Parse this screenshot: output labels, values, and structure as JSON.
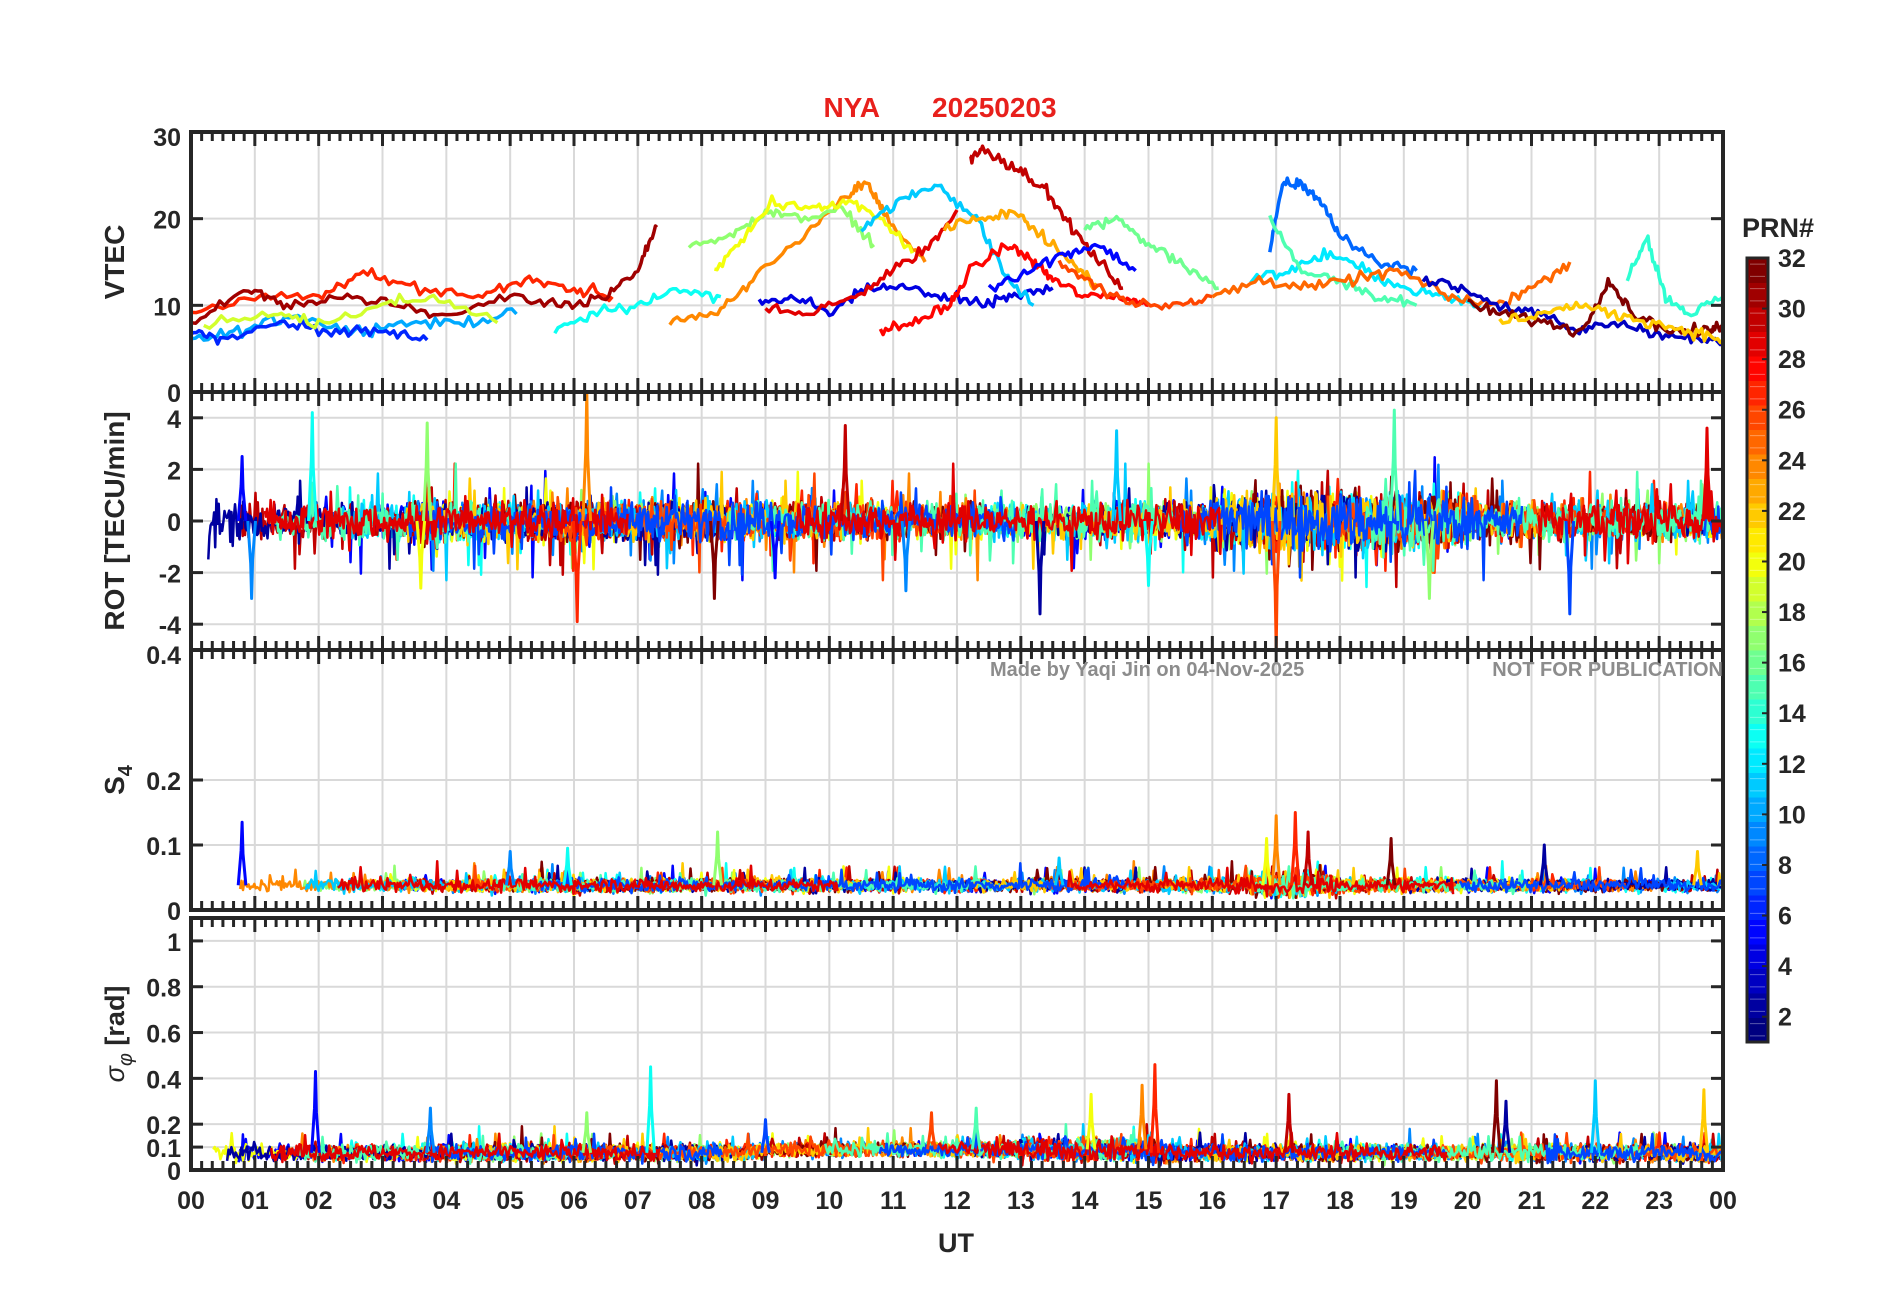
{
  "title": {
    "station": "NYA",
    "date": "20250203",
    "color": "#e8201c"
  },
  "watermark": {
    "author": "Made by Yaqi Jin on 04-Nov-2025",
    "notice": "NOT FOR PUBLICATION"
  },
  "x_axis": {
    "label": "UT",
    "range_hours": [
      0,
      24
    ],
    "tick_labels": [
      "00",
      "01",
      "02",
      "03",
      "04",
      "05",
      "06",
      "07",
      "08",
      "09",
      "10",
      "11",
      "12",
      "13",
      "14",
      "15",
      "16",
      "17",
      "18",
      "19",
      "20",
      "21",
      "22",
      "23",
      "00"
    ]
  },
  "colorbar": {
    "title": "PRN#",
    "range": [
      1,
      32
    ],
    "tick_labels": [
      "2",
      "4",
      "6",
      "8",
      "10",
      "12",
      "14",
      "16",
      "18",
      "20",
      "22",
      "24",
      "26",
      "28",
      "30",
      "32"
    ],
    "tick_values": [
      2,
      4,
      6,
      8,
      10,
      12,
      14,
      16,
      18,
      20,
      22,
      24,
      26,
      28,
      30,
      32
    ],
    "colormap": "jet"
  },
  "chart_data": [
    {
      "type": "line",
      "panel": "vtec",
      "ylabel": "VTEC",
      "ylim": [
        0,
        30
      ],
      "ytick_values": [
        0,
        10,
        20,
        30
      ],
      "ytick_labels": [
        "0",
        "10",
        "20",
        "30"
      ],
      "grid": true,
      "series": [
        {
          "name": "PRN 27",
          "x": [
            0.0,
            1.0,
            2.0,
            2.7,
            3.5,
            4.5,
            5.3,
            6.0,
            6.6
          ],
          "y": [
            9,
            11,
            11,
            14,
            12,
            11,
            13,
            12,
            11
          ]
        },
        {
          "name": "PRN 31",
          "x": [
            0.0,
            0.9,
            1.5,
            2.3,
            3.2,
            4.0,
            5.0,
            5.8,
            6.5,
            7.0,
            7.3
          ],
          "y": [
            8,
            12,
            10,
            11,
            10,
            9,
            11,
            10,
            11,
            14,
            19
          ]
        },
        {
          "name": "PRN 10",
          "x": [
            0.0,
            0.8,
            1.6,
            2.5,
            3.3,
            4.2,
            5.1
          ],
          "y": [
            6,
            7,
            9,
            7,
            8,
            8,
            9
          ]
        },
        {
          "name": "PRN 6",
          "x": [
            0.0,
            0.5,
            1.4,
            2.2,
            3.0,
            3.7
          ],
          "y": [
            7,
            6,
            8,
            7,
            7,
            6
          ]
        },
        {
          "name": "PRN 19",
          "x": [
            0.2,
            1.3,
            2.0,
            3.0,
            3.8,
            4.8
          ],
          "y": [
            8,
            9,
            8,
            10,
            11,
            8
          ]
        },
        {
          "name": "PRN 13",
          "x": [
            5.7,
            6.3,
            7.0,
            7.6,
            8.3
          ],
          "y": [
            7,
            9,
            10,
            12,
            11
          ]
        },
        {
          "name": "PRN 24",
          "x": [
            7.5,
            8.2,
            8.8,
            9.6,
            10.3,
            10.6,
            10.9,
            11.5
          ],
          "y": [
            8,
            9,
            13,
            18,
            23,
            24,
            20,
            15
          ]
        },
        {
          "name": "PRN 17",
          "x": [
            7.8,
            8.5,
            9.0,
            9.5,
            10.2,
            10.7
          ],
          "y": [
            17,
            18,
            21,
            20,
            21,
            17
          ]
        },
        {
          "name": "PRN 20",
          "x": [
            8.2,
            8.7,
            9.1,
            9.8,
            10.3,
            10.8,
            11.3
          ],
          "y": [
            14,
            18,
            22,
            21,
            22,
            20,
            16
          ]
        },
        {
          "name": "PRN 4",
          "x": [
            8.9,
            9.5,
            10.0,
            10.6,
            11.2,
            11.8,
            12.4,
            12.9,
            13.5
          ],
          "y": [
            10,
            11,
            9,
            12,
            12,
            11,
            10,
            11,
            12
          ]
        },
        {
          "name": "PRN 29",
          "x": [
            9.0,
            9.7,
            10.4,
            11.0,
            11.6,
            12.0
          ],
          "y": [
            10,
            9,
            11,
            14,
            17,
            21
          ]
        },
        {
          "name": "PRN 11",
          "x": [
            10.5,
            11.1,
            11.7,
            12.3,
            12.8,
            13.2
          ],
          "y": [
            19,
            22,
            24,
            20,
            13,
            10
          ]
        },
        {
          "name": "PRN 28",
          "x": [
            10.8,
            11.3,
            11.9,
            12.2,
            12.8,
            13.2,
            13.5,
            14.0,
            14.6,
            15.0
          ],
          "y": [
            7,
            8,
            10,
            14,
            17,
            15,
            13,
            11,
            11,
            10
          ]
        },
        {
          "name": "PRN 30",
          "x": [
            12.2,
            12.4,
            12.9,
            13.3,
            13.7,
            14.1,
            14.6
          ],
          "y": [
            27,
            28,
            26,
            24,
            20,
            16,
            12
          ]
        },
        {
          "name": "PRN 23",
          "x": [
            11.8,
            12.4,
            12.9,
            13.3,
            13.8,
            14.2
          ],
          "y": [
            19,
            20,
            21,
            18,
            15,
            12
          ]
        },
        {
          "name": "PRN 5",
          "x": [
            12.5,
            13.1,
            13.7,
            14.2,
            14.8
          ],
          "y": [
            12,
            14,
            16,
            17,
            14
          ]
        },
        {
          "name": "PRN 26",
          "x": [
            13.6,
            14.2,
            14.8,
            15.5,
            16.0
          ],
          "y": [
            15,
            12,
            10,
            10,
            11
          ]
        },
        {
          "name": "PRN 16",
          "x": [
            14.0,
            14.5,
            15.0,
            15.5,
            16.1
          ],
          "y": [
            19,
            20,
            17,
            15,
            12
          ]
        },
        {
          "name": "PRN 8",
          "x": [
            16.9,
            17.1,
            17.4,
            17.7,
            18.0,
            18.6,
            19.2
          ],
          "y": [
            16,
            24,
            24,
            22,
            18,
            15,
            14
          ]
        },
        {
          "name": "PRN 12",
          "x": [
            16.6,
            17.2,
            17.8,
            18.4,
            19.0,
            19.6,
            20.2
          ],
          "y": [
            13,
            14,
            16,
            14,
            12,
            11,
            10
          ]
        },
        {
          "name": "PRN 15",
          "x": [
            16.9,
            17.4,
            18.0,
            18.6,
            19.2
          ],
          "y": [
            20,
            14,
            13,
            11,
            10
          ]
        },
        {
          "name": "PRN 25",
          "x": [
            16.0,
            16.8,
            17.5,
            18.2,
            18.9,
            19.7,
            20.4,
            21.0,
            21.6
          ],
          "y": [
            11,
            13,
            12,
            13,
            14,
            11,
            10,
            12,
            15
          ]
        },
        {
          "name": "PRN 3",
          "x": [
            19.3,
            19.9,
            20.5,
            21.1,
            21.7,
            22.3,
            22.9,
            23.5,
            24.0
          ],
          "y": [
            13,
            12,
            10,
            9,
            7,
            8,
            7,
            6,
            6
          ]
        },
        {
          "name": "PRN 32",
          "x": [
            20.0,
            20.6,
            21.2,
            21.8,
            22.2,
            22.6,
            23.2,
            23.8,
            24.0
          ],
          "y": [
            10,
            9,
            8,
            7,
            13,
            9,
            7,
            7,
            8
          ]
        },
        {
          "name": "PRN 14",
          "x": [
            22.5,
            22.8,
            23.1,
            23.5,
            24.0
          ],
          "y": [
            13,
            18,
            11,
            9,
            11
          ]
        },
        {
          "name": "PRN 22",
          "x": [
            20.5,
            21.1,
            21.7,
            22.3,
            22.9,
            23.5,
            24.0
          ],
          "y": [
            8,
            9,
            10,
            9,
            8,
            7,
            6
          ]
        }
      ]
    },
    {
      "type": "line",
      "panel": "rot",
      "ylabel": "ROT [TECU/min]",
      "ylim": [
        -5,
        5
      ],
      "ytick_values": [
        -4,
        -2,
        0,
        2,
        4
      ],
      "ytick_labels": [
        "-4",
        "-2",
        "0",
        "2",
        "4"
      ],
      "grid": true,
      "spikes": [
        {
          "x": 0.8,
          "y": 2.5
        },
        {
          "x": 0.95,
          "y": -3.0
        },
        {
          "x": 1.9,
          "y": 4.2
        },
        {
          "x": 3.7,
          "y": 3.8
        },
        {
          "x": 3.6,
          "y": -2.6
        },
        {
          "x": 6.2,
          "y": 5.0
        },
        {
          "x": 6.05,
          "y": -3.9
        },
        {
          "x": 10.25,
          "y": 3.7
        },
        {
          "x": 8.2,
          "y": -3.0
        },
        {
          "x": 13.3,
          "y": -3.6
        },
        {
          "x": 14.5,
          "y": 3.5
        },
        {
          "x": 17.0,
          "y": 4.0
        },
        {
          "x": 17.0,
          "y": -5.0
        },
        {
          "x": 18.85,
          "y": 4.3
        },
        {
          "x": 21.6,
          "y": -3.6
        },
        {
          "x": 23.75,
          "y": 3.6
        },
        {
          "x": 9.15,
          "y": -2.2
        },
        {
          "x": 11.2,
          "y": -2.7
        },
        {
          "x": 15.0,
          "y": -2.5
        },
        {
          "x": 19.4,
          "y": -3.0
        }
      ]
    },
    {
      "type": "line",
      "panel": "s4",
      "ylabel": "S4",
      "ylim": [
        0,
        0.4
      ],
      "ytick_values": [
        0,
        0.1,
        0.2,
        0.4
      ],
      "ytick_labels": [
        "0",
        "0.1",
        "0.2",
        "0.4"
      ],
      "grid": true,
      "peaks": [
        {
          "x": 0.8,
          "y": 0.135
        },
        {
          "x": 5.0,
          "y": 0.09
        },
        {
          "x": 5.9,
          "y": 0.095
        },
        {
          "x": 8.25,
          "y": 0.12
        },
        {
          "x": 16.85,
          "y": 0.11
        },
        {
          "x": 17.0,
          "y": 0.145
        },
        {
          "x": 17.3,
          "y": 0.15
        },
        {
          "x": 17.5,
          "y": 0.12
        },
        {
          "x": 18.8,
          "y": 0.11
        },
        {
          "x": 21.2,
          "y": 0.1
        },
        {
          "x": 13.6,
          "y": 0.08
        },
        {
          "x": 23.6,
          "y": 0.09
        }
      ]
    },
    {
      "type": "line",
      "panel": "sigma_phi",
      "ylabel": "σφ [rad]",
      "ylim": [
        0,
        1.1
      ],
      "ytick_values": [
        0,
        0.1,
        0.2,
        0.4,
        0.6,
        0.8,
        1
      ],
      "ytick_labels": [
        "0",
        "0.1",
        "0.2",
        "0.4",
        "0.6",
        "0.8",
        "1"
      ],
      "grid": true,
      "peaks": [
        {
          "x": 1.95,
          "y": 0.43
        },
        {
          "x": 3.75,
          "y": 0.27
        },
        {
          "x": 7.2,
          "y": 0.45
        },
        {
          "x": 6.2,
          "y": 0.25
        },
        {
          "x": 14.1,
          "y": 0.33
        },
        {
          "x": 14.9,
          "y": 0.37
        },
        {
          "x": 15.1,
          "y": 0.46
        },
        {
          "x": 17.2,
          "y": 0.33
        },
        {
          "x": 20.45,
          "y": 0.39
        },
        {
          "x": 20.6,
          "y": 0.3
        },
        {
          "x": 22.0,
          "y": 0.39
        },
        {
          "x": 23.7,
          "y": 0.35
        },
        {
          "x": 11.6,
          "y": 0.25
        },
        {
          "x": 12.3,
          "y": 0.27
        },
        {
          "x": 9.0,
          "y": 0.22
        }
      ]
    }
  ]
}
